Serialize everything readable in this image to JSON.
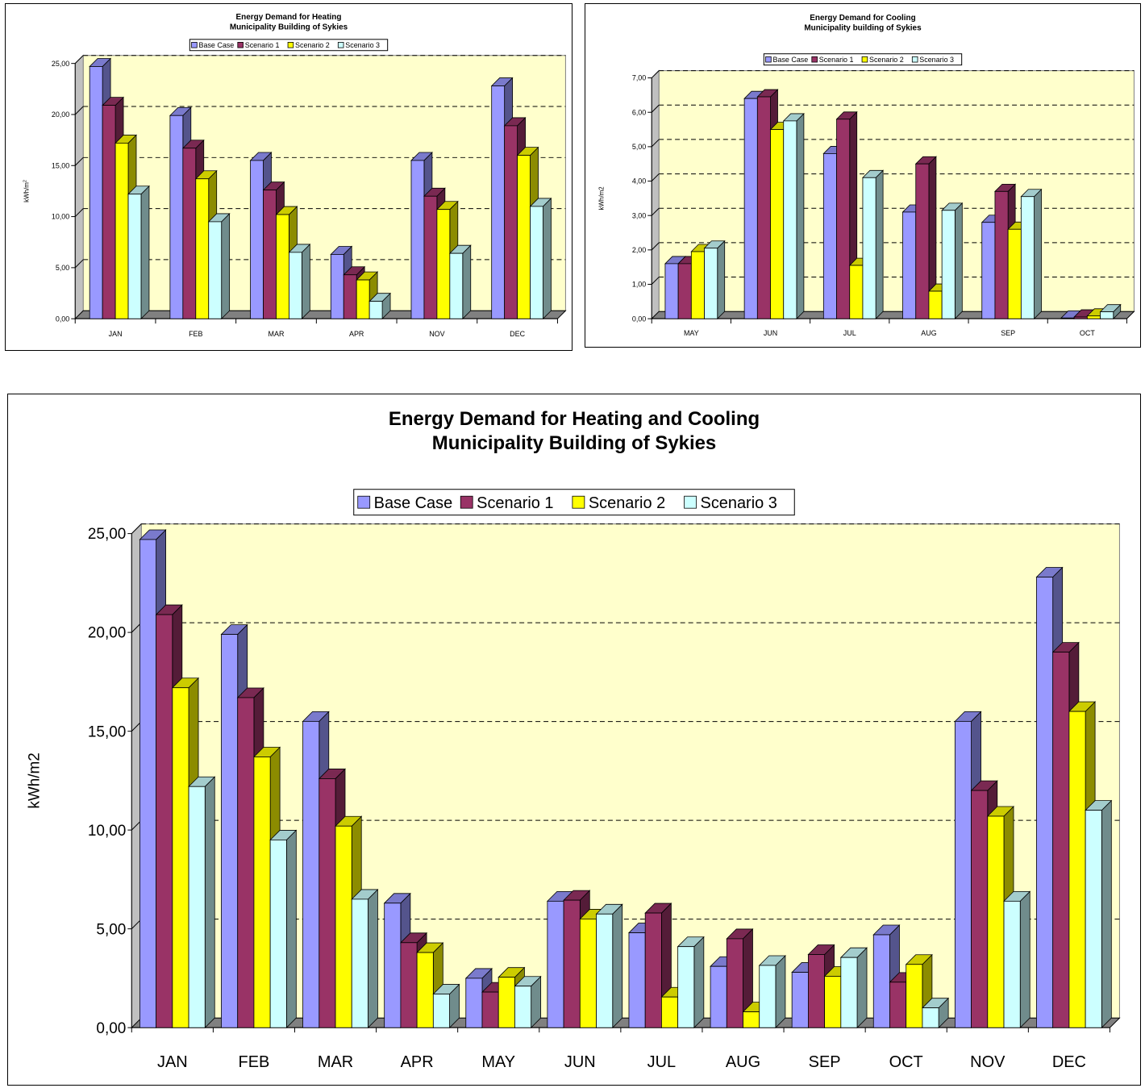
{
  "chart_data": [
    {
      "type": "bar",
      "title": "Energy Demand for Heating",
      "subtitle": "Municipality Building of Sykies",
      "ylabel": "kWh/m",
      "ylabel_sup": "2",
      "xlabel": "",
      "ylim": [
        0,
        25
      ],
      "ytick_step": 5,
      "ytick_labels": [
        "0,00",
        "5,00",
        "10,00",
        "15,00",
        "20,00",
        "25,00"
      ],
      "grid": true,
      "legend_position": "top",
      "categories": [
        "JAN",
        "FEB",
        "MAR",
        "APR",
        "NOV",
        "DEC"
      ],
      "series": [
        {
          "name": "Base Case",
          "values": [
            24.7,
            19.9,
            15.5,
            6.3,
            15.5,
            22.8
          ]
        },
        {
          "name": "Scenario 1",
          "values": [
            20.9,
            16.7,
            12.6,
            4.3,
            12.0,
            18.9
          ]
        },
        {
          "name": "Scenario 2",
          "values": [
            17.2,
            13.7,
            10.2,
            3.8,
            10.7,
            16.0
          ]
        },
        {
          "name": "Scenario 3",
          "values": [
            12.2,
            9.5,
            6.5,
            1.7,
            6.4,
            11.0
          ]
        }
      ]
    },
    {
      "type": "bar",
      "title": "Energy Demand for Cooling",
      "subtitle": "Municipality building of Sykies",
      "ylabel": "kWh/m2",
      "xlabel": "",
      "ylim": [
        0,
        7
      ],
      "ytick_step": 1,
      "ytick_labels": [
        "0,00",
        "1,00",
        "2,00",
        "3,00",
        "4,00",
        "5,00",
        "6,00",
        "7,00"
      ],
      "grid": true,
      "legend_position": "top",
      "categories": [
        "MAY",
        "JUN",
        "JUL",
        "AUG",
        "SEP",
        "OCT"
      ],
      "series": [
        {
          "name": "Base Case",
          "values": [
            1.6,
            6.4,
            4.8,
            3.1,
            2.8,
            0.02
          ]
        },
        {
          "name": "Scenario 1",
          "values": [
            1.6,
            6.45,
            5.8,
            4.5,
            3.7,
            0.05
          ]
        },
        {
          "name": "Scenario 2",
          "values": [
            1.95,
            5.5,
            1.55,
            0.8,
            2.6,
            0.08
          ]
        },
        {
          "name": "Scenario 3",
          "values": [
            2.05,
            5.75,
            4.1,
            3.15,
            3.55,
            0.2
          ]
        }
      ]
    },
    {
      "type": "bar",
      "title": "Energy Demand for Heating and Cooling",
      "subtitle": "Municipality Building of Sykies",
      "ylabel": "kWh/m2",
      "xlabel": "",
      "ylim": [
        0,
        25
      ],
      "ytick_step": 5,
      "ytick_labels": [
        "0,00",
        "5,00",
        "10,00",
        "15,00",
        "20,00",
        "25,00"
      ],
      "grid": true,
      "legend_position": "top",
      "categories": [
        "JAN",
        "FEB",
        "MAR",
        "APR",
        "MAY",
        "JUN",
        "JUL",
        "AUG",
        "SEP",
        "OCT",
        "NOV",
        "DEC"
      ],
      "series": [
        {
          "name": "Base Case",
          "values": [
            24.7,
            19.9,
            15.5,
            6.3,
            2.5,
            6.4,
            4.8,
            3.1,
            2.8,
            4.7,
            15.5,
            22.8
          ]
        },
        {
          "name": "Scenario 1",
          "values": [
            20.9,
            16.7,
            12.6,
            4.3,
            1.8,
            6.45,
            5.8,
            4.5,
            3.7,
            2.3,
            12.0,
            19.0
          ]
        },
        {
          "name": "Scenario 2",
          "values": [
            17.2,
            13.7,
            10.2,
            3.8,
            2.55,
            5.5,
            1.55,
            0.8,
            2.6,
            3.2,
            10.7,
            16.0
          ]
        },
        {
          "name": "Scenario 3",
          "values": [
            12.2,
            9.5,
            6.5,
            1.7,
            2.1,
            5.75,
            4.1,
            3.15,
            3.55,
            1.0,
            6.4,
            11.0
          ]
        }
      ]
    }
  ],
  "colors": {
    "series": [
      "#9999ff",
      "#993366",
      "#ffff00",
      "#ccffff"
    ],
    "plot_background": "#ffffcc",
    "floor": "#808080"
  }
}
